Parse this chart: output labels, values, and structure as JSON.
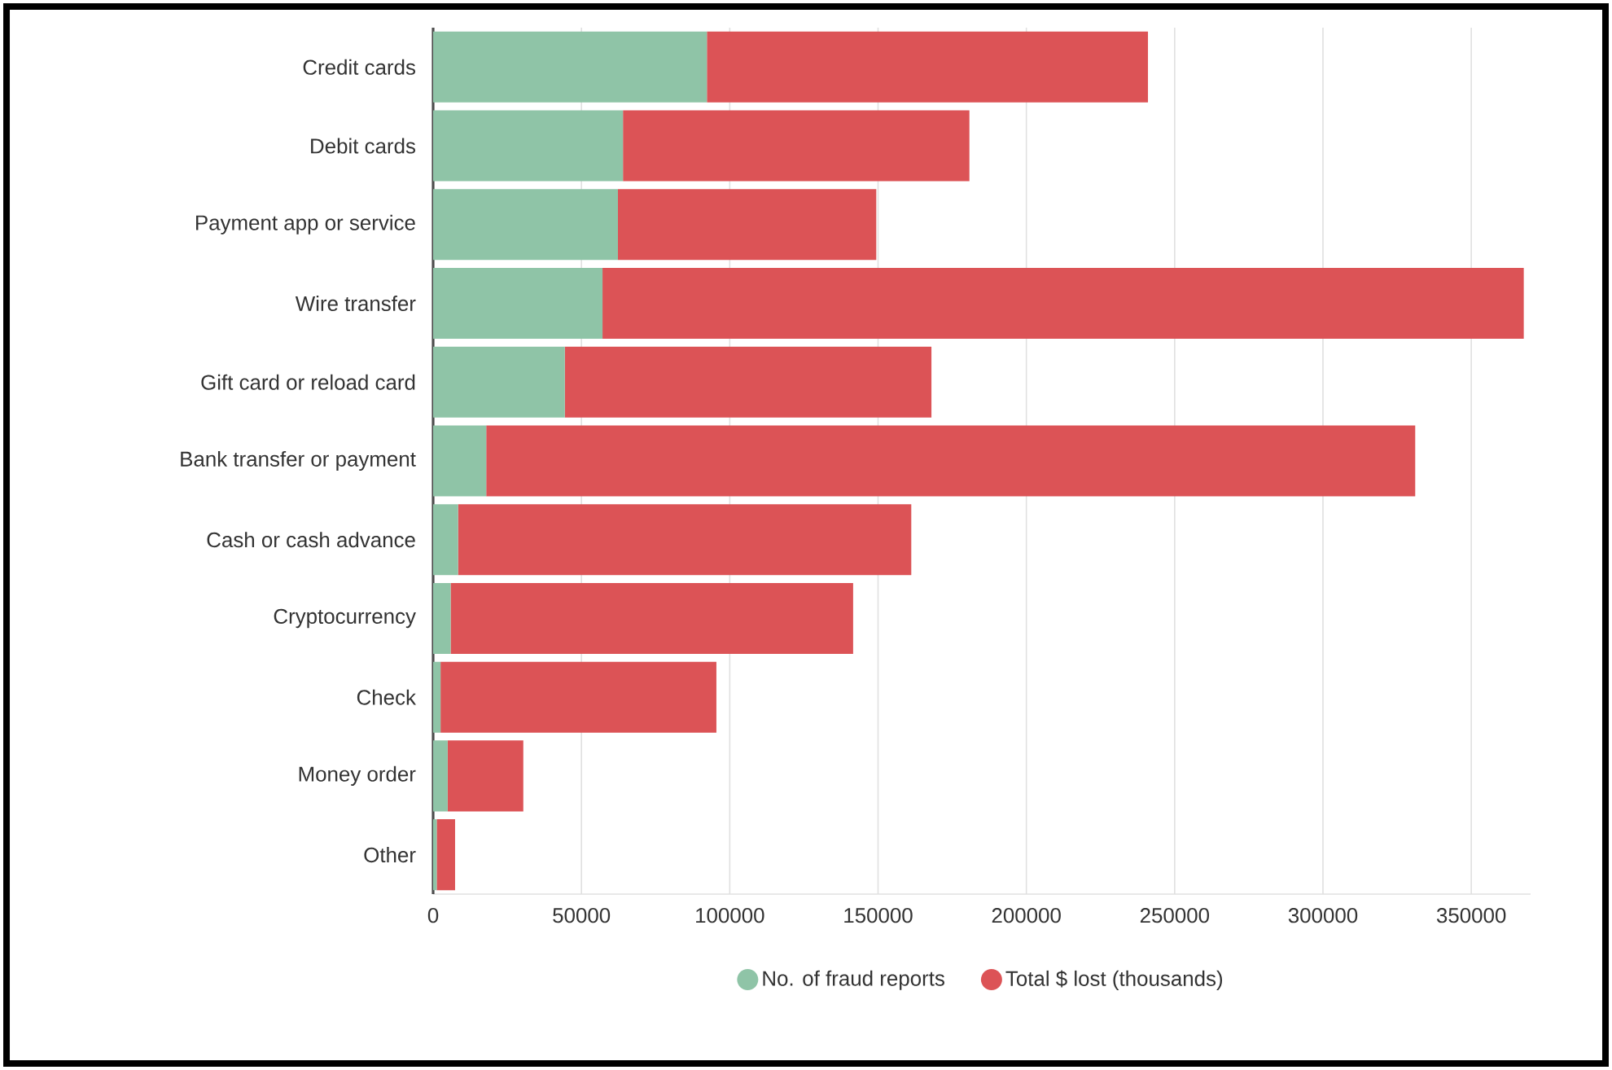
{
  "chart_data": {
    "type": "bar",
    "orientation": "horizontal",
    "stacked": true,
    "categories": [
      "Credit cards",
      "Debit cards",
      "Payment app or service",
      "Wire transfer",
      "Gift card or reload card",
      "Bank transfer or payment",
      "Cash or cash advance",
      "Cryptocurrency",
      "Check",
      "Money order",
      "Other"
    ],
    "series": [
      {
        "name": "No. of fraud reports",
        "color": "#8fc4a7",
        "values": [
          92300,
          64000,
          62300,
          57100,
          44400,
          17900,
          8400,
          5900,
          2500,
          4900,
          1200
        ]
      },
      {
        "name": "Total $ lost (thousands)",
        "color": "#dc5356",
        "values": [
          148700,
          116800,
          87100,
          310600,
          123600,
          313200,
          152800,
          135700,
          93000,
          25500,
          6200
        ]
      }
    ],
    "xlim": [
      0,
      370000
    ],
    "xticks": [
      0,
      50000,
      100000,
      150000,
      200000,
      250000,
      300000,
      350000
    ],
    "grid": "x",
    "legend": "bottom"
  }
}
